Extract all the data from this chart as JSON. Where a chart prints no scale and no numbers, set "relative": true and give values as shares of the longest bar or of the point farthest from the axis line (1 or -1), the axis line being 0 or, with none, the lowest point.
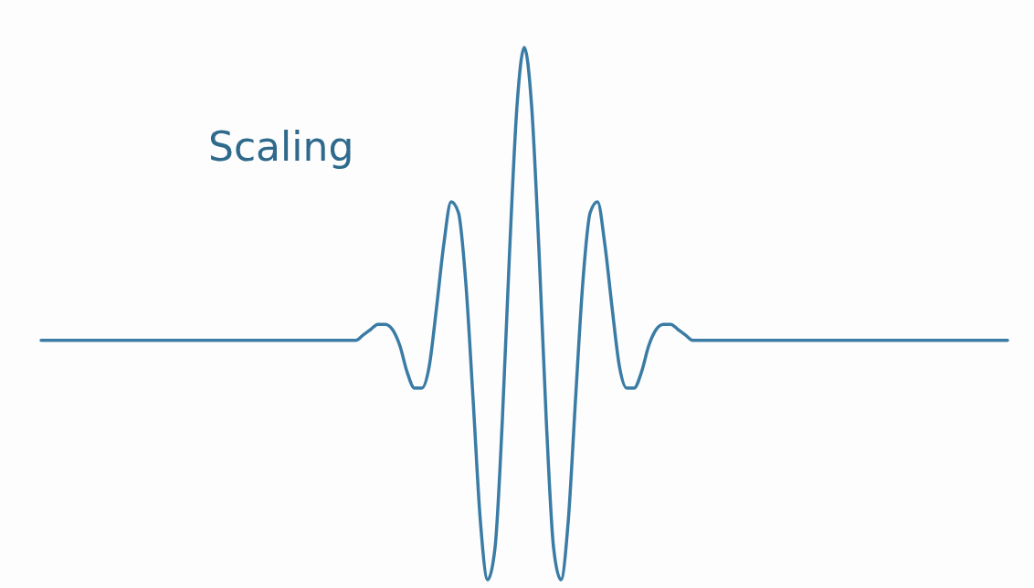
{
  "chart_data": {
    "type": "line",
    "title": "Scaling",
    "relative": true,
    "categories": [
      null,
      null,
      null,
      null,
      null,
      null,
      null,
      null,
      null,
      null,
      null,
      null,
      null,
      null,
      null,
      null,
      null,
      null,
      null,
      null,
      null,
      null,
      null,
      null,
      null,
      null,
      null,
      null,
      null,
      null,
      null,
      null,
      null,
      null,
      null,
      null,
      null,
      null,
      null,
      null,
      null,
      null,
      null,
      null,
      null,
      null,
      null,
      null,
      null,
      null,
      null,
      null,
      null,
      null,
      null,
      null,
      null,
      null,
      null,
      null,
      null,
      null,
      null,
      null,
      null,
      null,
      null,
      null,
      null,
      null,
      null,
      null,
      null,
      null,
      null,
      null,
      null,
      null,
      null,
      null,
      null,
      null,
      null,
      null,
      null,
      null,
      null,
      null,
      null,
      null,
      null,
      null,
      null,
      null,
      null,
      null,
      null,
      null,
      null,
      null,
      null,
      null,
      null,
      null,
      null,
      null,
      null,
      null,
      null,
      null,
      null,
      null,
      null,
      null,
      null,
      null,
      null,
      null,
      null,
      null,
      null,
      null,
      null,
      null,
      null,
      null,
      null,
      null,
      null,
      null,
      null,
      null,
      null
    ],
    "series": [
      {
        "color": "#3a7ca5",
        "values": [
          0.45,
          0.45,
          0.45,
          0.45,
          0.45,
          0.45,
          0.45,
          0.45,
          0.45,
          0.45,
          0.45,
          0.45,
          0.45,
          0.45,
          0.45,
          0.45,
          0.45,
          0.45,
          0.45,
          0.45,
          0.45,
          0.45,
          0.45,
          0.45,
          0.45,
          0.45,
          0.45,
          0.45,
          0.45,
          0.45,
          0.45,
          0.45,
          0.45,
          0.45,
          0.45,
          0.45,
          0.45,
          0.45,
          0.45,
          0.45,
          0.45,
          0.45,
          0.45,
          0.45,
          0.46,
          0.47,
          0.48,
          0.48,
          0.47,
          0.44,
          0.39,
          0.36,
          0.36,
          0.4,
          0.51,
          0.63,
          0.71,
          0.69,
          0.56,
          0.34,
          0.11,
          0.0,
          0.06,
          0.3,
          0.62,
          0.89,
          1.0,
          0.89,
          0.62,
          0.3,
          0.06,
          0.0,
          0.11,
          0.34,
          0.56,
          0.69,
          0.71,
          0.63,
          0.51,
          0.4,
          0.36,
          0.36,
          0.39,
          0.44,
          0.47,
          0.48,
          0.48,
          0.47,
          0.46,
          0.45,
          0.45,
          0.45,
          0.45,
          0.45,
          0.45,
          0.45,
          0.45,
          0.45,
          0.45,
          0.45,
          0.45,
          0.45,
          0.45,
          0.45,
          0.45,
          0.45,
          0.45,
          0.45,
          0.45,
          0.45,
          0.45,
          0.45,
          0.45,
          0.45,
          0.45,
          0.45,
          0.45,
          0.45,
          0.45,
          0.45,
          0.45,
          0.45,
          0.45,
          0.45,
          0.45,
          0.45,
          0.45,
          0.45,
          0.45,
          0.45,
          0.45,
          0.45,
          0.45
        ]
      }
    ]
  }
}
